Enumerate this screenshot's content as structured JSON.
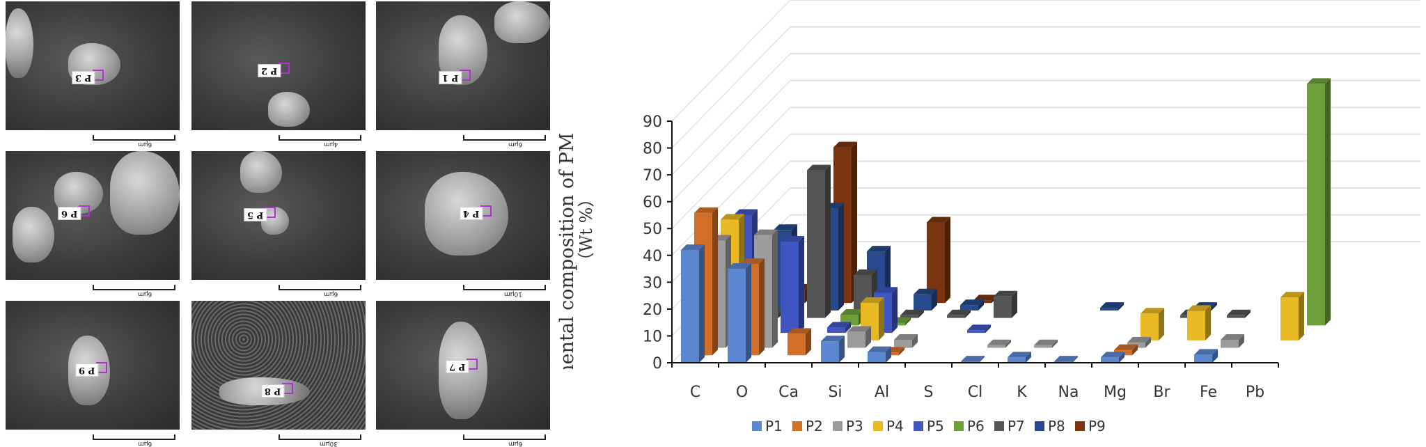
{
  "sem_images": [
    {
      "label": "P 3",
      "scale": "6μm"
    },
    {
      "label": "P 2",
      "scale": "4μm"
    },
    {
      "label": "P 1",
      "scale": "6μm"
    },
    {
      "label": "P 6",
      "scale": "6μm"
    },
    {
      "label": "P 5",
      "scale": "6μm"
    },
    {
      "label": "P 4",
      "scale": "10μm"
    },
    {
      "label": "P 9",
      "scale": "6μm"
    },
    {
      "label": "P 8",
      "scale": "30μm"
    },
    {
      "label": "P 7",
      "scale": "6μm"
    }
  ],
  "chart_data": {
    "type": "bar",
    "subtype": "3d-clustered-depth",
    "title": "",
    "ylabel": "elemental composition of PM",
    "ylabel_unit": "（Wt %）",
    "xlabel": "",
    "ylim": [
      0,
      90
    ],
    "yticks": [
      0,
      10,
      20,
      30,
      40,
      50,
      60,
      70,
      80,
      90
    ],
    "grid": true,
    "legend_position": "bottom",
    "categories": [
      "C",
      "O",
      "Ca",
      "Si",
      "Al",
      "S",
      "Cl",
      "K",
      "Na",
      "Mg",
      "Br",
      "Fe",
      "Pb"
    ],
    "series": [
      {
        "name": "P1",
        "color": "#5b86d0",
        "values": [
          42,
          35,
          0,
          8,
          4,
          0,
          0.5,
          2,
          0.5,
          2,
          0,
          3,
          0
        ]
      },
      {
        "name": "P2",
        "color": "#d2702a",
        "values": [
          53,
          34,
          8,
          0,
          1,
          0,
          0,
          0,
          0,
          2,
          0,
          0,
          0
        ]
      },
      {
        "name": "P3",
        "color": "#9c9c9c",
        "values": [
          40,
          42,
          0,
          6,
          3,
          0,
          1,
          1,
          0,
          2,
          0,
          3,
          0
        ]
      },
      {
        "name": "P4",
        "color": "#e8b923",
        "values": [
          45,
          0,
          0,
          14,
          0,
          0,
          0,
          0,
          0,
          10,
          11,
          0,
          16
        ]
      },
      {
        "name": "P5",
        "color": "#3f56c0",
        "values": [
          44,
          34,
          2,
          15,
          0,
          1,
          0,
          0,
          0,
          0,
          0,
          0,
          0
        ]
      },
      {
        "name": "P6",
        "color": "#6ea03a",
        "values": [
          0,
          0,
          4,
          1,
          0,
          0,
          0,
          0,
          0,
          0,
          0,
          0,
          90
        ]
      },
      {
        "name": "P7",
        "color": "#555555",
        "values": [
          2,
          55,
          16,
          1,
          1,
          8,
          0,
          0,
          0,
          1,
          1,
          0,
          0
        ]
      },
      {
        "name": "P8",
        "color": "#264a8c",
        "values": [
          30,
          38,
          22,
          6,
          2,
          0,
          0,
          1,
          0,
          1,
          0,
          0,
          0
        ]
      },
      {
        "name": "P9",
        "color": "#7a3510",
        "values": [
          5,
          58,
          0,
          30,
          1,
          0,
          0,
          0,
          0,
          0,
          0,
          0,
          0
        ]
      }
    ]
  }
}
